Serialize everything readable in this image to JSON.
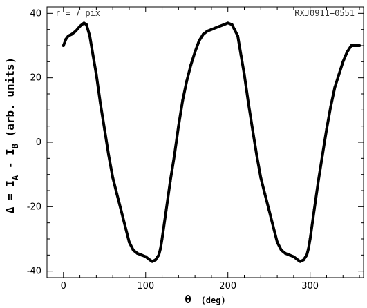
{
  "chart_data": {
    "type": "line",
    "xlabel": "θ",
    "xlabel_unit": "(deg)",
    "ylabel_parts": {
      "prefix": "Δ = I",
      "sub_a": "A",
      "mid": " - I",
      "sub_b": "B",
      "suffix": " (arb. units)"
    },
    "annotation_left": "r = 7 pix",
    "annotation_right": "RXJ0911+0551",
    "xlim": [
      -20,
      365
    ],
    "ylim": [
      -42,
      42
    ],
    "x_ticks": [
      0,
      100,
      200,
      300
    ],
    "y_ticks": [
      -40,
      -20,
      0,
      20,
      40
    ],
    "grid": false,
    "series": [
      {
        "color": "#000000",
        "x": [
          0,
          3,
          6,
          10,
          15,
          20,
          25,
          28,
          32,
          36,
          40,
          45,
          50,
          55,
          60,
          65,
          70,
          75,
          80,
          85,
          90,
          95,
          100,
          105,
          108,
          112,
          116,
          118,
          120,
          125,
          130,
          135,
          140,
          145,
          150,
          155,
          160,
          165,
          170,
          175,
          180,
          185,
          190,
          195,
          200,
          205,
          208,
          212,
          216,
          220,
          225,
          230,
          235,
          240,
          245,
          250,
          255,
          260,
          265,
          270,
          275,
          280,
          285,
          288,
          292,
          296,
          298,
          300,
          305,
          310,
          315,
          320,
          325,
          330,
          335,
          340,
          345,
          350,
          355,
          360
        ],
        "y": [
          30,
          32,
          33,
          33.5,
          34.5,
          36,
          37,
          36.5,
          33,
          27,
          21,
          12,
          4,
          -4,
          -11,
          -16,
          -21,
          -26,
          -31,
          -33.5,
          -34.5,
          -35,
          -35.5,
          -36.5,
          -37,
          -36.5,
          -35,
          -33,
          -30,
          -21,
          -12,
          -4,
          5,
          13,
          19,
          24,
          28,
          31.5,
          33.5,
          34.5,
          35,
          35.5,
          36,
          36.5,
          37,
          36.5,
          35,
          33,
          27,
          21,
          12,
          4,
          -4,
          -11,
          -16,
          -21,
          -26,
          -31,
          -33.5,
          -34.5,
          -35,
          -35.5,
          -36.5,
          -37,
          -36.5,
          -35,
          -33,
          -30,
          -21,
          -12,
          -4,
          4,
          11,
          17,
          21,
          25,
          28,
          30,
          30,
          30
        ]
      }
    ]
  }
}
